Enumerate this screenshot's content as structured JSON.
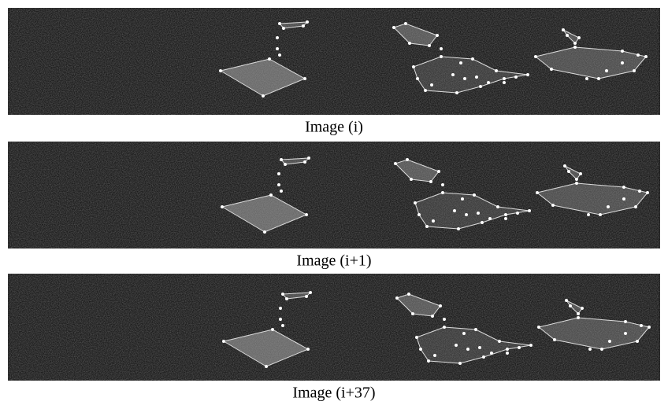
{
  "figure": {
    "panels": [
      {
        "caption": "Image (i)"
      },
      {
        "caption": "Image (i+1)"
      },
      {
        "caption": "Image (i+37)"
      }
    ]
  }
}
